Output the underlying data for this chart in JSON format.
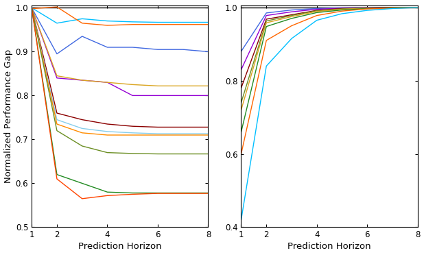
{
  "left_plot": {
    "xlim": [
      1,
      8
    ],
    "ylim": [
      0.5,
      1.005
    ],
    "yticks": [
      0.5,
      0.6,
      0.7,
      0.8,
      0.9,
      1.0
    ],
    "xticks": [
      1,
      2,
      4,
      6,
      8
    ],
    "xlabel": "Prediction Horizon",
    "ylabel": "Normalized Performance Gap",
    "series": [
      {
        "color": "#000000",
        "x": [
          1,
          2,
          3,
          4,
          5,
          6,
          7,
          8
        ],
        "y": [
          1.0,
          1.0,
          1.0,
          1.0,
          1.0,
          1.0,
          1.0,
          1.0
        ]
      },
      {
        "color": "#00BFFF",
        "x": [
          1,
          2,
          3,
          4,
          5,
          6,
          7,
          8
        ],
        "y": [
          1.0,
          0.965,
          0.975,
          0.97,
          0.968,
          0.967,
          0.967,
          0.967
        ]
      },
      {
        "color": "#FF6600",
        "x": [
          1,
          2,
          3,
          4,
          5,
          6,
          7,
          8
        ],
        "y": [
          0.998,
          1.002,
          0.965,
          0.96,
          0.962,
          0.962,
          0.962,
          0.962
        ]
      },
      {
        "color": "#4169E1",
        "x": [
          1,
          2,
          3,
          4,
          5,
          6,
          7,
          8
        ],
        "y": [
          1.0,
          0.895,
          0.935,
          0.91,
          0.91,
          0.905,
          0.905,
          0.9
        ]
      },
      {
        "color": "#9400D3",
        "x": [
          1,
          2,
          3,
          4,
          5,
          6,
          7,
          8
        ],
        "y": [
          1.0,
          0.84,
          0.835,
          0.83,
          0.8,
          0.8,
          0.8,
          0.8
        ]
      },
      {
        "color": "#DAA520",
        "x": [
          1,
          2,
          3,
          4,
          5,
          6,
          7,
          8
        ],
        "y": [
          1.0,
          0.845,
          0.835,
          0.83,
          0.825,
          0.822,
          0.822,
          0.822
        ]
      },
      {
        "color": "#8B0000",
        "x": [
          1,
          2,
          3,
          4,
          5,
          6,
          7,
          8
        ],
        "y": [
          1.0,
          0.76,
          0.745,
          0.735,
          0.73,
          0.728,
          0.728,
          0.728
        ]
      },
      {
        "color": "#87CEEB",
        "x": [
          1,
          2,
          3,
          4,
          5,
          6,
          7,
          8
        ],
        "y": [
          1.0,
          0.745,
          0.725,
          0.718,
          0.715,
          0.713,
          0.713,
          0.713
        ]
      },
      {
        "color": "#FF8C00",
        "x": [
          1,
          2,
          3,
          4,
          5,
          6,
          7,
          8
        ],
        "y": [
          1.0,
          0.735,
          0.715,
          0.71,
          0.71,
          0.71,
          0.71,
          0.71
        ]
      },
      {
        "color": "#6B8E23",
        "x": [
          1,
          2,
          3,
          4,
          5,
          6,
          7,
          8
        ],
        "y": [
          1.0,
          0.72,
          0.685,
          0.67,
          0.668,
          0.667,
          0.667,
          0.667
        ]
      },
      {
        "color": "#228B22",
        "x": [
          1,
          2,
          3,
          4,
          5,
          6,
          7,
          8
        ],
        "y": [
          1.0,
          0.62,
          0.6,
          0.58,
          0.578,
          0.578,
          0.578,
          0.578
        ]
      },
      {
        "color": "#FF4500",
        "x": [
          1,
          2,
          3,
          4,
          5,
          6,
          7,
          8
        ],
        "y": [
          1.0,
          0.61,
          0.565,
          0.572,
          0.575,
          0.577,
          0.577,
          0.577
        ]
      }
    ]
  },
  "right_plot": {
    "xlim": [
      1,
      8
    ],
    "ylim": [
      0.4,
      1.005
    ],
    "yticks": [
      0.4,
      0.6,
      0.8,
      1.0
    ],
    "xticks": [
      1,
      2,
      4,
      6,
      8
    ],
    "xlabel": "Prediction Horizon",
    "series": [
      {
        "color": "#000000",
        "x": [
          1,
          2,
          3,
          4,
          5,
          6,
          7,
          8
        ],
        "y": [
          1.0,
          1.0,
          1.0,
          1.0,
          1.0,
          1.0,
          1.0,
          1.0
        ]
      },
      {
        "color": "#4169E1",
        "x": [
          1,
          2,
          3,
          4,
          5,
          6,
          7,
          8
        ],
        "y": [
          0.88,
          0.985,
          0.993,
          0.997,
          0.999,
          1.0,
          1.0,
          1.0
        ]
      },
      {
        "color": "#9400D3",
        "x": [
          1,
          2,
          3,
          4,
          5,
          6,
          7,
          8
        ],
        "y": [
          0.83,
          0.978,
          0.988,
          0.995,
          0.998,
          0.999,
          1.0,
          1.0
        ]
      },
      {
        "color": "#8B0000",
        "x": [
          1,
          2,
          3,
          4,
          5,
          6,
          7,
          8
        ],
        "y": [
          0.78,
          0.968,
          0.98,
          0.992,
          0.997,
          0.999,
          1.0,
          1.0
        ]
      },
      {
        "color": "#6B8E23",
        "x": [
          1,
          2,
          3,
          4,
          5,
          6,
          7,
          8
        ],
        "y": [
          0.74,
          0.963,
          0.978,
          0.991,
          0.996,
          0.998,
          0.999,
          1.0
        ]
      },
      {
        "color": "#DAA520",
        "x": [
          1,
          2,
          3,
          4,
          5,
          6,
          7,
          8
        ],
        "y": [
          0.72,
          0.958,
          0.975,
          0.989,
          0.995,
          0.998,
          0.999,
          1.0
        ]
      },
      {
        "color": "#228B22",
        "x": [
          1,
          2,
          3,
          4,
          5,
          6,
          7,
          8
        ],
        "y": [
          0.66,
          0.948,
          0.97,
          0.986,
          0.993,
          0.997,
          0.999,
          1.0
        ]
      },
      {
        "color": "#FF6600",
        "x": [
          1,
          2,
          3,
          4,
          5,
          6,
          7,
          8
        ],
        "y": [
          0.6,
          0.91,
          0.95,
          0.978,
          0.99,
          0.996,
          0.998,
          1.0
        ]
      },
      {
        "color": "#00BFFF",
        "x": [
          1,
          2,
          3,
          4,
          5,
          6,
          7,
          8
        ],
        "y": [
          0.42,
          0.84,
          0.915,
          0.965,
          0.983,
          0.992,
          0.997,
          1.0
        ]
      }
    ]
  },
  "figure_bg": "#ffffff",
  "linewidth": 1.0,
  "tick_fontsize": 8.5,
  "label_fontsize": 9.5
}
